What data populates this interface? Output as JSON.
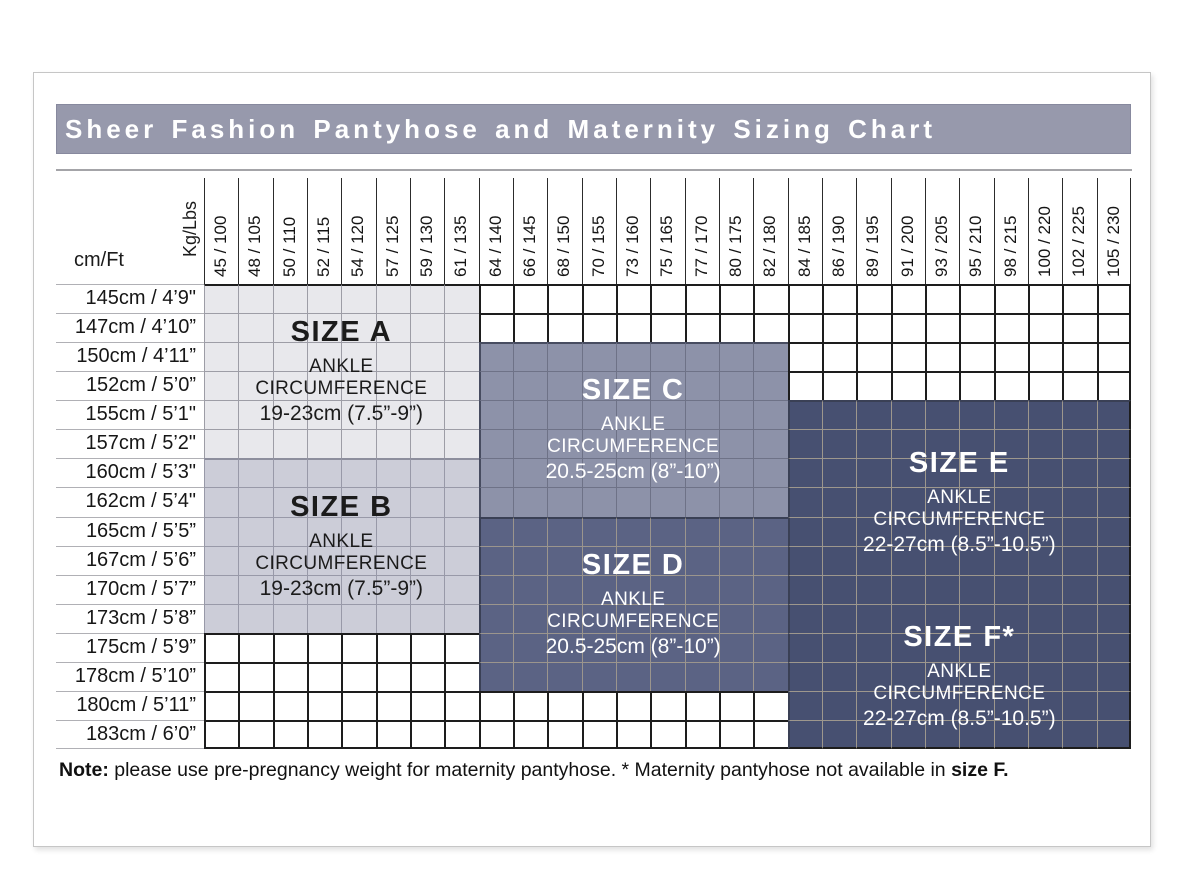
{
  "title": "Sheer Fashion Pantyhose and Maternity Sizing Chart",
  "note": {
    "label": "Note:",
    "body": " please use pre-pregnancy weight for maternity pantyhose. * Maternity pantyhose not available in ",
    "emphasis": "size F."
  },
  "colors": {
    "title_bar": "#9799ac",
    "title_text": "#ffffff",
    "white_cell_line": "#1d1d1d",
    "label_separator": "#b0b0b5",
    "card_border": "#c6c6c6"
  },
  "regions": [
    {
      "id": "A",
      "title": "SIZE A",
      "line1": "ANKLE",
      "line2": "CIRCUMFERENCE",
      "range": "19-23cm (7.5”-9”)",
      "col": 0,
      "cols": 8,
      "row": 0,
      "rows": 6,
      "fill": "#e8e8ec",
      "line": "#9d9da6",
      "edge_top": "#8d8e9d",
      "edge_left": "#9d9da6",
      "text_color": "#1b1b1b"
    },
    {
      "id": "B",
      "title": "SIZE B",
      "line1": "ANKLE",
      "line2": "CIRCUMFERENCE",
      "range": "19-23cm (7.5”-9”)",
      "col": 0,
      "cols": 8,
      "row": 6,
      "rows": 6,
      "fill": "#cccdd8",
      "line": "#9899a8",
      "edge_top": "#8d8e9d",
      "edge_left": "#9899a8",
      "text_color": "#1b1b1b"
    },
    {
      "id": "C",
      "title": "SIZE C",
      "line1": "ANKLE",
      "line2": "CIRCUMFERENCE",
      "range": "20.5-25cm (8”-10”)",
      "col": 8,
      "cols": 9,
      "row": 2,
      "rows": 6,
      "fill": "#8d92a9",
      "line": "#6e7287",
      "edge_top": "#474c60",
      "edge_left": "#474c60",
      "text_color": "#ffffff"
    },
    {
      "id": "D",
      "title": "SIZE D",
      "line1": "ANKLE",
      "line2": "CIRCUMFERENCE",
      "range": "20.5-25cm (8”-10”)",
      "col": 8,
      "cols": 9,
      "row": 8,
      "rows": 6,
      "fill": "#5b6384",
      "line": "#9b958d",
      "edge_top": "#3a4055",
      "edge_left": "#3a4055",
      "text_color": "#ffffff"
    },
    {
      "id": "E",
      "title": "SIZE E",
      "line1": "ANKLE",
      "line2": "CIRCUMFERENCE",
      "range": "22-27cm (8.5”-10.5”)",
      "col": 17,
      "cols": 10,
      "row": 4,
      "rows": 7,
      "fill": "#475071",
      "line": "#9d978d",
      "edge_top": "#3a4055",
      "edge_left": "#3a4055",
      "text_color": "#ffffff"
    },
    {
      "id": "F",
      "title": "SIZE F*",
      "line1": "ANKLE",
      "line2": "CIRCUMFERENCE",
      "range": "22-27cm (8.5”-10.5”)",
      "col": 17,
      "cols": 10,
      "row": 11,
      "rows": 5,
      "fill": "#475071",
      "line": "#9d978d",
      "edge_top": "#9d978d",
      "edge_left": "#3a4055",
      "text_color": "#ffffff"
    }
  ],
  "chart_data": {
    "type": "table",
    "title": "Sheer Fashion Pantyhose and Maternity Sizing Chart",
    "x_axis": {
      "label": "Kg/Lbs",
      "ticks": [
        "45 / 100",
        "48 / 105",
        "50 / 110",
        "52 / 115",
        "54 / 120",
        "57 / 125",
        "59 / 130",
        "61 / 135",
        "64 / 140",
        "66 / 145",
        "68 / 150",
        "70 / 155",
        "73 / 160",
        "75 / 165",
        "77 / 170",
        "80 / 175",
        "82 / 180",
        "84 / 185",
        "86 / 190",
        "89 / 195",
        "91 / 200",
        "93 / 205",
        "95 / 210",
        "98 / 215",
        "100 / 220",
        "102 / 225",
        "105 / 230"
      ]
    },
    "y_axis": {
      "label": "cm/Ft",
      "ticks": [
        "145cm / 4’9\"",
        "147cm / 4’10”",
        "150cm / 4’11”",
        "152cm / 5’0”",
        "155cm / 5’1\"",
        "157cm / 5’2\"",
        "160cm / 5’3\"",
        "162cm / 5’4\"",
        "165cm / 5’5”",
        "167cm / 5’6”",
        "170cm / 5’7”",
        "173cm / 5’8”",
        "175cm / 5’9”",
        "178cm / 5’10”",
        "180cm / 5’11”",
        "183cm / 6’0”"
      ]
    },
    "sizes": [
      {
        "size": "A",
        "ankle_circumference": "19-23cm (7.5”-9”)",
        "weight_range_kg_lbs": [
          "45 / 100",
          "61 / 135"
        ],
        "height_range": [
          "145cm / 4’9\"",
          "157cm / 5’2\""
        ]
      },
      {
        "size": "B",
        "ankle_circumference": "19-23cm (7.5”-9”)",
        "weight_range_kg_lbs": [
          "45 / 100",
          "61 / 135"
        ],
        "height_range": [
          "160cm / 5’3\"",
          "173cm / 5’8”"
        ]
      },
      {
        "size": "C",
        "ankle_circumference": "20.5-25cm (8”-10”)",
        "weight_range_kg_lbs": [
          "64 / 140",
          "82 / 180"
        ],
        "height_range": [
          "150cm / 4’11”",
          "162cm / 5’4\""
        ]
      },
      {
        "size": "D",
        "ankle_circumference": "20.5-25cm (8”-10”)",
        "weight_range_kg_lbs": [
          "64 / 140",
          "82 / 180"
        ],
        "height_range": [
          "165cm / 5’5”",
          "178cm / 5’10”"
        ]
      },
      {
        "size": "E",
        "ankle_circumference": "22-27cm (8.5”-10.5”)",
        "weight_range_kg_lbs": [
          "84 / 185",
          "105 / 230"
        ],
        "height_range": [
          "155cm / 5’1\"",
          "170cm / 5’7”"
        ]
      },
      {
        "size": "F*",
        "ankle_circumference": "22-27cm (8.5”-10.5”)",
        "weight_range_kg_lbs": [
          "84 / 185",
          "105 / 230"
        ],
        "height_range": [
          "173cm / 5’8”",
          "183cm / 6’0”"
        ]
      }
    ],
    "note": "Note: please use pre-pregnancy weight for maternity pantyhose. * Maternity pantyhose not available in size F.",
    "grid": "on",
    "legend_position": "none"
  }
}
